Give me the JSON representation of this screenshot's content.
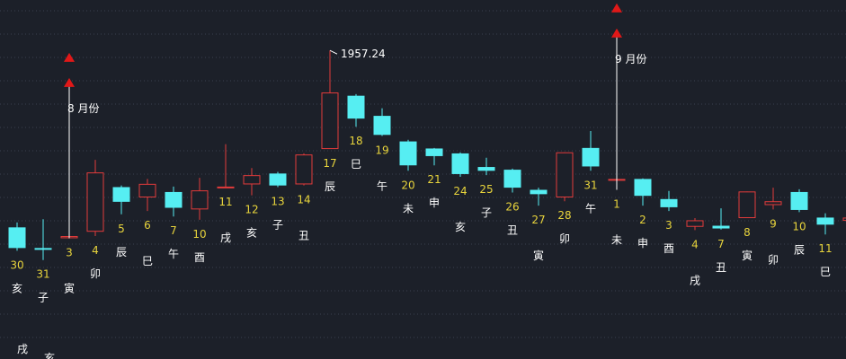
{
  "colors": {
    "background": "#1c2029",
    "grid": "#3a4150",
    "up": "#e23b3b",
    "down": "#56eef2",
    "date_label": "#e8d43c",
    "branch_label": "#ffffff",
    "marker": "#e01818",
    "annotation": "#ffffff"
  },
  "chart_data": {
    "type": "candlestick",
    "grid": true,
    "ylim": [
      1390,
      2050
    ],
    "candles": [
      {
        "date": "30",
        "branch": "亥",
        "open": 1632,
        "close": 1594,
        "high": 1641,
        "low": 1589,
        "dir": "down"
      },
      {
        "date": "31",
        "branch": "子",
        "open": 1594,
        "close": 1592,
        "high": 1647,
        "low": 1572,
        "dir": "down"
      },
      {
        "date": "3",
        "branch": "寅",
        "open": 1612,
        "close": 1616,
        "high": 1900,
        "low": 1612,
        "dir": "up"
      },
      {
        "date": "4",
        "branch": "卯",
        "open": 1624,
        "close": 1733,
        "high": 1756,
        "low": 1616,
        "dir": "up"
      },
      {
        "date": "5",
        "branch": "辰",
        "open": 1706,
        "close": 1679,
        "high": 1709,
        "low": 1656,
        "dir": "down"
      },
      {
        "date": "6",
        "branch": "巳",
        "open": 1687,
        "close": 1712,
        "high": 1721,
        "low": 1662,
        "dir": "up"
      },
      {
        "date": "7",
        "branch": "午",
        "open": 1697,
        "close": 1668,
        "high": 1707,
        "low": 1652,
        "dir": "down"
      },
      {
        "date": "10",
        "branch": "酉",
        "open": 1665,
        "close": 1700,
        "high": 1723,
        "low": 1646,
        "dir": "up"
      },
      {
        "date": "11",
        "branch": "戌",
        "open": 1705,
        "close": 1707,
        "high": 1785,
        "low": 1705,
        "dir": "up"
      },
      {
        "date": "12",
        "branch": "亥",
        "open": 1711,
        "close": 1728,
        "high": 1741,
        "low": 1691,
        "dir": "up"
      },
      {
        "date": "13",
        "branch": "子",
        "open": 1731,
        "close": 1709,
        "high": 1734,
        "low": 1706,
        "dir": "down"
      },
      {
        "date": "14",
        "branch": "丑",
        "open": 1711,
        "close": 1766,
        "high": 1768,
        "low": 1709,
        "dir": "up"
      },
      {
        "date": "17",
        "branch": "辰",
        "open": 1776,
        "close": 1880,
        "high": 1957.24,
        "low": 1776,
        "dir": "up"
      },
      {
        "date": "18",
        "branch": "巳",
        "open": 1874,
        "close": 1832,
        "high": 1877,
        "low": 1817,
        "dir": "down"
      },
      {
        "date": "19",
        "branch": "午",
        "open": 1837,
        "close": 1802,
        "high": 1851,
        "low": 1800,
        "dir": "down"
      },
      {
        "date": "20",
        "branch": "未",
        "open": 1790,
        "close": 1746,
        "high": 1793,
        "low": 1736,
        "dir": "down"
      },
      {
        "date": "21",
        "branch": "申",
        "open": 1777,
        "close": 1763,
        "high": 1778,
        "low": 1746,
        "dir": "down"
      },
      {
        "date": "24",
        "branch": "亥",
        "open": 1768,
        "close": 1730,
        "high": 1770,
        "low": 1725,
        "dir": "down"
      },
      {
        "date": "25",
        "branch": "子",
        "open": 1743,
        "close": 1736,
        "high": 1760,
        "low": 1728,
        "dir": "down"
      },
      {
        "date": "26",
        "branch": "丑",
        "open": 1738,
        "close": 1705,
        "high": 1740,
        "low": 1696,
        "dir": "down"
      },
      {
        "date": "27",
        "branch": "寅",
        "open": 1701,
        "close": 1693,
        "high": 1705,
        "low": 1672,
        "dir": "down"
      },
      {
        "date": "28",
        "branch": "卯",
        "open": 1687,
        "close": 1770,
        "high": 1770,
        "low": 1680,
        "dir": "up"
      },
      {
        "date": "31",
        "branch": "午",
        "open": 1778,
        "close": 1744,
        "high": 1809,
        "low": 1736,
        "dir": "down"
      },
      {
        "date": "1",
        "branch": "未",
        "open": 1721,
        "close": 1721,
        "high": 1991,
        "low": 1701,
        "dir": "up"
      },
      {
        "date": "2",
        "branch": "申",
        "open": 1721,
        "close": 1690,
        "high": 1722,
        "low": 1672,
        "dir": "down"
      },
      {
        "date": "3",
        "branch": "酉",
        "open": 1684,
        "close": 1669,
        "high": 1699,
        "low": 1662,
        "dir": "down"
      },
      {
        "date": "4",
        "branch": "戌",
        "open": 1633,
        "close": 1645,
        "high": 1649,
        "low": 1627,
        "dir": "up"
      },
      {
        "date": "7",
        "branch": "丑",
        "open": 1635,
        "close": 1630,
        "high": 1667,
        "low": 1628,
        "dir": "down"
      },
      {
        "date": "8",
        "branch": "寅",
        "open": 1649,
        "close": 1698,
        "high": 1698,
        "low": 1649,
        "dir": "up"
      },
      {
        "date": "9",
        "branch": "卯",
        "open": 1673,
        "close": 1680,
        "high": 1705,
        "low": 1665,
        "dir": "up"
      },
      {
        "date": "10",
        "branch": "辰",
        "open": 1697,
        "close": 1664,
        "high": 1702,
        "low": 1660,
        "dir": "down"
      },
      {
        "date": "11",
        "branch": "巳",
        "open": 1650,
        "close": 1637,
        "high": 1658,
        "low": 1619,
        "dir": "down"
      },
      {
        "date": "",
        "branch": "",
        "open": 1650,
        "close": 1644,
        "high": 1652,
        "low": 1642,
        "dir": "up"
      }
    ],
    "peak_label": {
      "candle_index": 12,
      "text": "1957.24"
    },
    "month_markers": [
      {
        "candle_index": 2,
        "text": "8 月份"
      },
      {
        "candle_index": 23,
        "text": "9 月份"
      }
    ],
    "edge_labels": {
      "branch_bottom_left": [
        "戌",
        "亥"
      ]
    }
  }
}
